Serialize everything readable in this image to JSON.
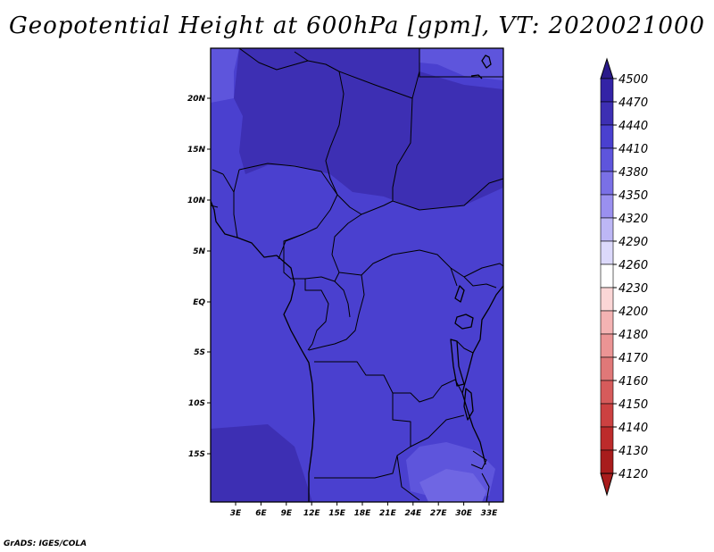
{
  "title": "Geopotential Height at 600hPa [gpm], VT: 2020021000",
  "credit": "GrADS: IGES/COLA",
  "map": {
    "lat_labels": [
      "20N",
      "15N",
      "10N",
      "5N",
      "EQ",
      "5S",
      "10S",
      "15S"
    ],
    "lon_labels": [
      "3E",
      "6E",
      "9E",
      "12E",
      "15E",
      "18E",
      "21E",
      "24E",
      "27E",
      "30E",
      "33E"
    ],
    "fill_colors": {
      "background": "#4a40cf",
      "higher": "#3d2fb3",
      "lower": "#5e55dc",
      "lowest": "#6f66e3"
    }
  },
  "colorbar": {
    "levels": [
      "4500",
      "4470",
      "4440",
      "4410",
      "4380",
      "4350",
      "4320",
      "4290",
      "4260",
      "4230",
      "4200",
      "4180",
      "4170",
      "4160",
      "4150",
      "4140",
      "4130",
      "4120"
    ],
    "colors": [
      "#2a1a8a",
      "#3323a6",
      "#3d2fb3",
      "#4a40cf",
      "#5e55dc",
      "#7a70e6",
      "#9a90ef",
      "#bdb7f5",
      "#dcd9fb",
      "#ffffff",
      "#fbd6d6",
      "#f4b3b3",
      "#eb9494",
      "#e07878",
      "#d65b5b",
      "#cc4141",
      "#bd2b2b",
      "#a81c1c"
    ]
  }
}
